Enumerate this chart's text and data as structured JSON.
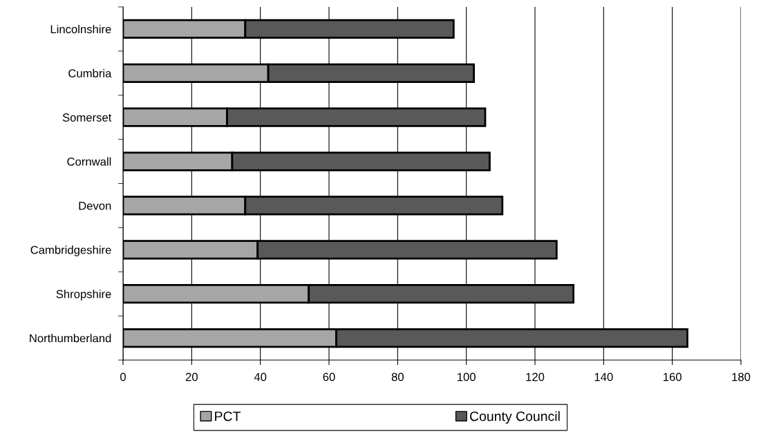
{
  "chart_data": {
    "type": "bar",
    "orientation": "horizontal",
    "stacked": true,
    "categories": [
      "Lincolnshire",
      "Cumbria",
      "Somerset",
      "Cornwall",
      "Devon",
      "Cambridgeshire",
      "Shropshire",
      "Northumberland"
    ],
    "series": [
      {
        "name": "PCT",
        "color": "#a6a6a6",
        "values": [
          35.6,
          42.3,
          30.3,
          31.8,
          35.6,
          39.2,
          54.1,
          62.1
        ]
      },
      {
        "name": "County Council",
        "color": "#595959",
        "values": [
          60.7,
          59.9,
          75.2,
          75.0,
          74.9,
          87.1,
          77.1,
          102.3
        ]
      }
    ],
    "xlim": [
      0,
      180
    ],
    "xticks": [
      0,
      20,
      40,
      60,
      80,
      100,
      120,
      140,
      160,
      180
    ],
    "grid": "x",
    "legend": "bottom"
  }
}
